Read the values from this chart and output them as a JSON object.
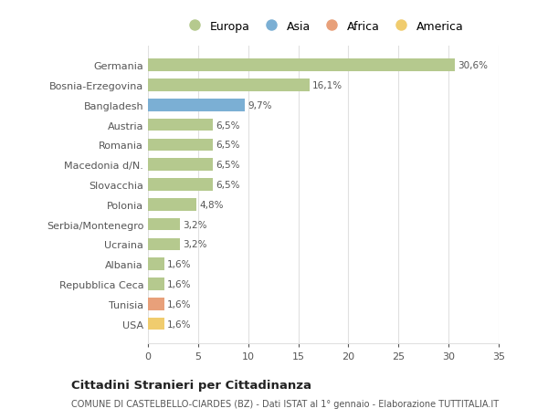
{
  "categories": [
    "Germania",
    "Bosnia-Erzegovina",
    "Bangladesh",
    "Austria",
    "Romania",
    "Macedonia d/N.",
    "Slovacchia",
    "Polonia",
    "Serbia/Montenegro",
    "Ucraina",
    "Albania",
    "Repubblica Ceca",
    "Tunisia",
    "USA"
  ],
  "values": [
    30.6,
    16.1,
    9.7,
    6.5,
    6.5,
    6.5,
    6.5,
    4.8,
    3.2,
    3.2,
    1.6,
    1.6,
    1.6,
    1.6
  ],
  "labels": [
    "30,6%",
    "16,1%",
    "9,7%",
    "6,5%",
    "6,5%",
    "6,5%",
    "6,5%",
    "4,8%",
    "3,2%",
    "3,2%",
    "1,6%",
    "1,6%",
    "1,6%",
    "1,6%"
  ],
  "bar_colors": [
    "#b5c98e",
    "#b5c98e",
    "#7bafd4",
    "#b5c98e",
    "#b5c98e",
    "#b5c98e",
    "#b5c98e",
    "#b5c98e",
    "#b5c98e",
    "#b5c98e",
    "#b5c98e",
    "#b5c98e",
    "#e8a07a",
    "#f0cc6e"
  ],
  "legend_labels": [
    "Europa",
    "Asia",
    "Africa",
    "America"
  ],
  "legend_colors": [
    "#b5c98e",
    "#7bafd4",
    "#e8a07a",
    "#f0cc6e"
  ],
  "xlim": [
    0,
    35
  ],
  "xticks": [
    0,
    5,
    10,
    15,
    20,
    25,
    30,
    35
  ],
  "title": "Cittadini Stranieri per Cittadinanza",
  "subtitle": "COMUNE DI CASTELBELLO-CIARDES (BZ) - Dati ISTAT al 1° gennaio - Elaborazione TUTTITALIA.IT",
  "background_color": "#ffffff",
  "grid_color": "#e0e0e0"
}
